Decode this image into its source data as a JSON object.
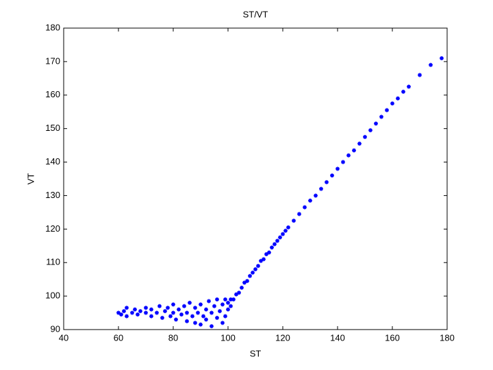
{
  "chart_data": {
    "type": "scatter",
    "title": "ST/VT",
    "x_label": "ST",
    "y_label": "VT",
    "xlim": [
      40,
      180
    ],
    "ylim": [
      90,
      180
    ],
    "xticks": [
      40,
      60,
      80,
      100,
      120,
      140,
      160,
      180
    ],
    "yticks": [
      90,
      100,
      110,
      120,
      130,
      140,
      150,
      160,
      170,
      180
    ],
    "marker": "*",
    "series": [
      {
        "color": "#0000ff",
        "x": [
          60,
          61,
          62,
          63,
          63,
          65,
          66,
          67,
          68,
          70,
          70,
          72,
          72,
          74,
          75,
          76,
          77,
          78,
          79,
          80,
          80,
          81,
          82,
          83,
          84,
          85,
          85,
          86,
          87,
          88,
          88,
          89,
          90,
          90,
          91,
          92,
          92,
          93,
          94,
          94,
          95,
          96,
          96,
          97,
          98,
          98,
          99,
          99,
          100,
          100,
          101,
          101,
          102,
          103,
          104,
          105,
          106,
          107,
          108,
          109,
          110,
          111,
          112,
          113,
          114,
          115,
          116,
          117,
          118,
          119,
          120,
          121,
          122,
          124,
          126,
          128,
          130,
          132,
          134,
          136,
          138,
          140,
          142,
          144,
          146,
          148,
          150,
          152,
          154,
          156,
          158,
          160,
          162,
          164,
          166,
          170,
          174,
          178
        ],
        "y": [
          95,
          94.5,
          95.5,
          94,
          96.5,
          95,
          96,
          94.5,
          95.5,
          95,
          96.5,
          94,
          96,
          95,
          97,
          93.5,
          95.5,
          96.5,
          94,
          95,
          97.5,
          93,
          96,
          94.5,
          97,
          92.5,
          95,
          98,
          94,
          96.5,
          92,
          95,
          97.5,
          91.5,
          94,
          96,
          93,
          98.5,
          95,
          91,
          97,
          93.5,
          99,
          95.5,
          92,
          97.5,
          94,
          99,
          96,
          98,
          97,
          99,
          99,
          100.5,
          101,
          102.5,
          104,
          104.5,
          106,
          107,
          108,
          109,
          110.5,
          111,
          112.5,
          113,
          114.5,
          115.5,
          116.5,
          117.5,
          118.5,
          119.5,
          120.5,
          122.5,
          124.5,
          126.5,
          128.5,
          130,
          132,
          134,
          136,
          138,
          140,
          142,
          143.5,
          145.5,
          147.5,
          149.5,
          151.5,
          153.5,
          155.5,
          157.5,
          159,
          161,
          162.5,
          166,
          169,
          171
        ]
      }
    ]
  }
}
